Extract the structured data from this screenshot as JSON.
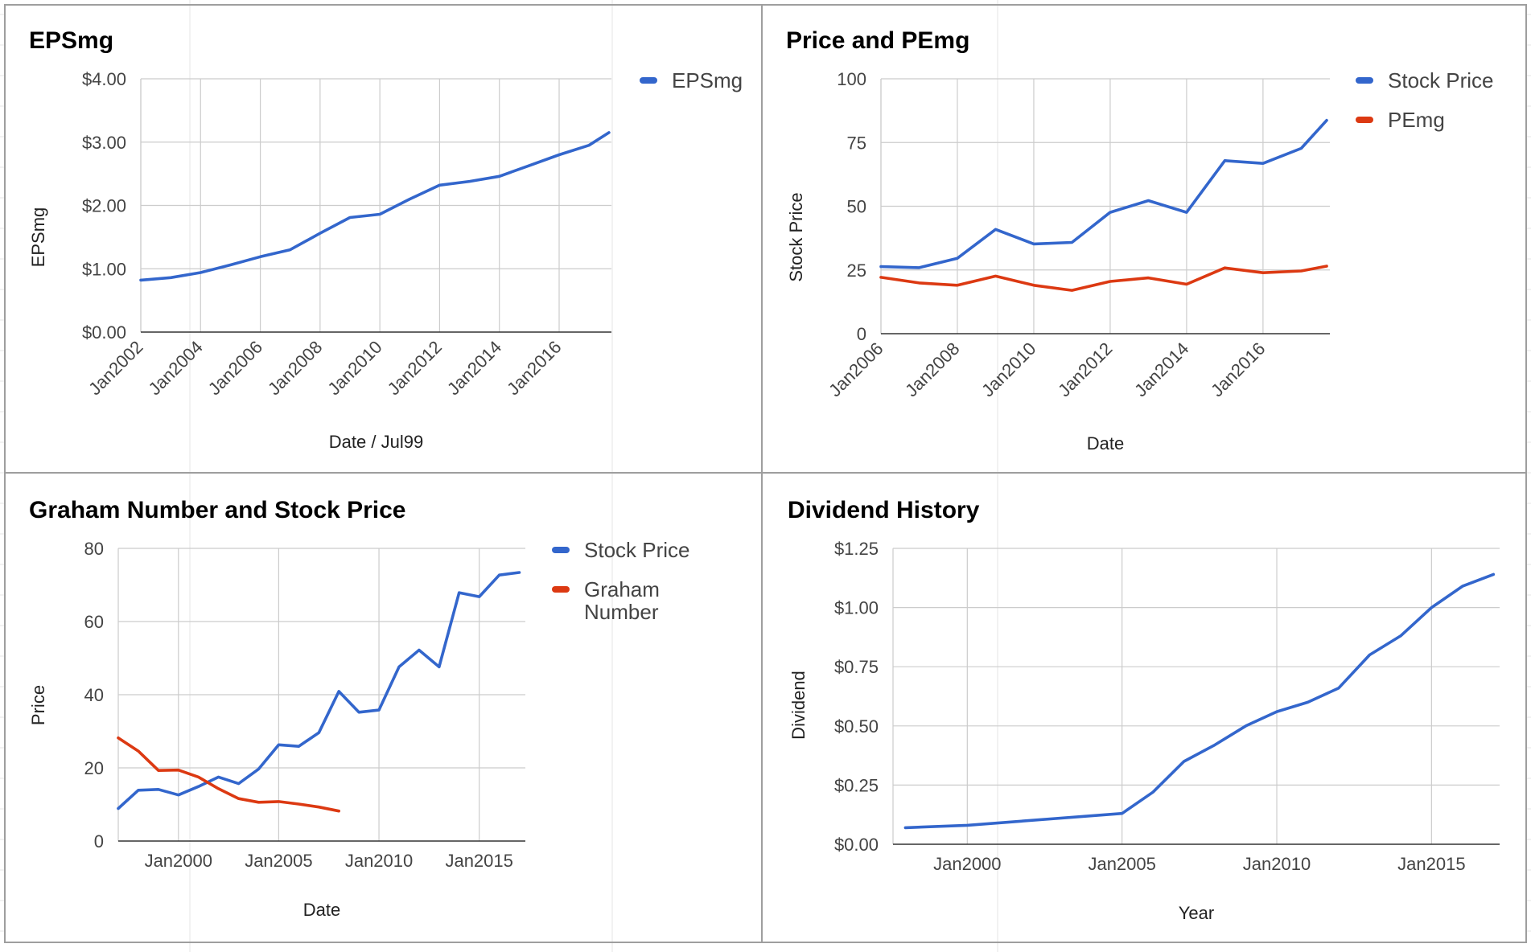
{
  "colors": {
    "blue": "#3366cc",
    "red": "#dc3912",
    "grid": "#cccccc"
  },
  "chart_data": [
    {
      "type": "line",
      "title": "EPSmg",
      "xlabel": "Date / Jul99",
      "ylabel": "EPSmg",
      "ylim": [
        0,
        4
      ],
      "y_ticks": [
        "$0.00",
        "$1.00",
        "$2.00",
        "$3.00",
        "$4.00"
      ],
      "x_ticks": [
        "Jan2002",
        "Jan2004",
        "Jan2006",
        "Jan2008",
        "Jan2010",
        "Jan2012",
        "Jan2014",
        "Jan2016"
      ],
      "legend_position": "right",
      "grid": true,
      "series": [
        {
          "name": "EPSmg",
          "color": "#3366cc",
          "x": [
            "Jan2002",
            "Jan2003",
            "Jan2004",
            "Jan2005",
            "Jan2006",
            "Jan2007",
            "Jan2008",
            "Jan2009",
            "Jan2010",
            "Jan2011",
            "Jan2012",
            "Jan2013",
            "Jan2014",
            "Jan2015",
            "Jan2016",
            "Jan2017",
            "Sep2017"
          ],
          "values": [
            0.82,
            0.86,
            0.94,
            1.06,
            1.19,
            1.3,
            1.56,
            1.81,
            1.86,
            2.1,
            2.32,
            2.38,
            2.46,
            2.63,
            2.8,
            2.95,
            3.15
          ]
        }
      ]
    },
    {
      "type": "line",
      "title": "Price and PEmg",
      "xlabel": "Date",
      "ylabel": "Stock Price",
      "ylim": [
        0,
        100
      ],
      "y_ticks": [
        "0",
        "25",
        "50",
        "75",
        "100"
      ],
      "x_ticks": [
        "Jan2006",
        "Jan2008",
        "Jan2010",
        "Jan2012",
        "Jan2014",
        "Jan2016"
      ],
      "legend_position": "right",
      "grid": true,
      "series": [
        {
          "name": "Stock Price",
          "color": "#3366cc",
          "x": [
            "Jan2006",
            "Jan2007",
            "Jan2008",
            "Jan2009",
            "Jan2010",
            "Jan2011",
            "Jan2012",
            "Jan2013",
            "Jan2014",
            "Jan2015",
            "Jan2016",
            "Jan2017",
            "Sep2017"
          ],
          "values": [
            26.3,
            25.9,
            29.6,
            40.9,
            35.2,
            35.8,
            47.6,
            52.2,
            47.6,
            67.9,
            66.8,
            72.7,
            83.7
          ]
        },
        {
          "name": "PEmg",
          "color": "#dc3912",
          "x": [
            "Jan2006",
            "Jan2007",
            "Jan2008",
            "Jan2009",
            "Jan2010",
            "Jan2011",
            "Jan2012",
            "Jan2013",
            "Jan2014",
            "Jan2015",
            "Jan2016",
            "Jan2017",
            "Sep2017"
          ],
          "values": [
            22.1,
            19.9,
            19.0,
            22.6,
            19.0,
            17.0,
            20.5,
            21.9,
            19.4,
            25.8,
            23.9,
            24.6,
            26.5
          ]
        }
      ]
    },
    {
      "type": "line",
      "title": "Graham Number and Stock Price",
      "xlabel": "Date",
      "ylabel": "Price",
      "ylim": [
        0,
        80
      ],
      "y_ticks": [
        "0",
        "20",
        "40",
        "60",
        "80"
      ],
      "x_ticks": [
        "Jan2000",
        "Jan2005",
        "Jan2010",
        "Jan2015"
      ],
      "legend_position": "right",
      "grid": true,
      "series": [
        {
          "name": "Stock Price",
          "color": "#3366cc",
          "x": [
            "Jan1997",
            "Jan1998",
            "Jan1999",
            "Jan2000",
            "Jan2001",
            "Jan2002",
            "Jan2003",
            "Jan2004",
            "Jan2005",
            "Jan2006",
            "Jan2007",
            "Jan2008",
            "Jan2009",
            "Jan2010",
            "Jan2011",
            "Jan2012",
            "Jan2013",
            "Jan2014",
            "Jan2015",
            "Jan2016",
            "Jan2017"
          ],
          "values": [
            8.9,
            13.9,
            14.1,
            12.6,
            14.9,
            17.5,
            15.7,
            19.7,
            26.3,
            25.9,
            29.6,
            40.9,
            35.2,
            35.8,
            47.6,
            52.2,
            47.6,
            67.9,
            66.8,
            72.7,
            73.4
          ]
        },
        {
          "name": "Graham Number",
          "color": "#dc3912",
          "x": [
            "Jan1997",
            "Jan1998",
            "Jan1999",
            "Jan2000",
            "Jan2001",
            "Jan2002",
            "Jan2003",
            "Jan2004",
            "Jan2005",
            "Jan2006",
            "Jan2007",
            "Jan2008"
          ],
          "values": [
            28.2,
            24.6,
            19.3,
            19.4,
            17.5,
            14.3,
            11.6,
            10.6,
            10.8,
            10.1,
            9.3,
            8.2
          ]
        }
      ]
    },
    {
      "type": "line",
      "title": "Dividend History",
      "xlabel": "Year",
      "ylabel": "Dividend",
      "ylim": [
        0,
        1.25
      ],
      "y_ticks": [
        "$0.00",
        "$0.25",
        "$0.50",
        "$0.75",
        "$1.00",
        "$1.25"
      ],
      "x_ticks": [
        "Jan2000",
        "Jan2005",
        "Jan2010",
        "Jan2015"
      ],
      "legend_position": "none",
      "grid": true,
      "series": [
        {
          "name": "Dividend",
          "color": "#3366cc",
          "x": [
            "Jan1998",
            "Jan2000",
            "Jan2005",
            "Jan2006",
            "Jan2007",
            "Jan2008",
            "Jan2009",
            "Jan2010",
            "Jan2011",
            "Jan2012",
            "Jan2013",
            "Jan2014",
            "Jan2015",
            "Jan2016",
            "Jan2017"
          ],
          "values": [
            0.07,
            0.08,
            0.13,
            0.22,
            0.35,
            0.42,
            0.5,
            0.56,
            0.6,
            0.66,
            0.8,
            0.88,
            1.0,
            1.09,
            1.14
          ]
        }
      ]
    }
  ]
}
